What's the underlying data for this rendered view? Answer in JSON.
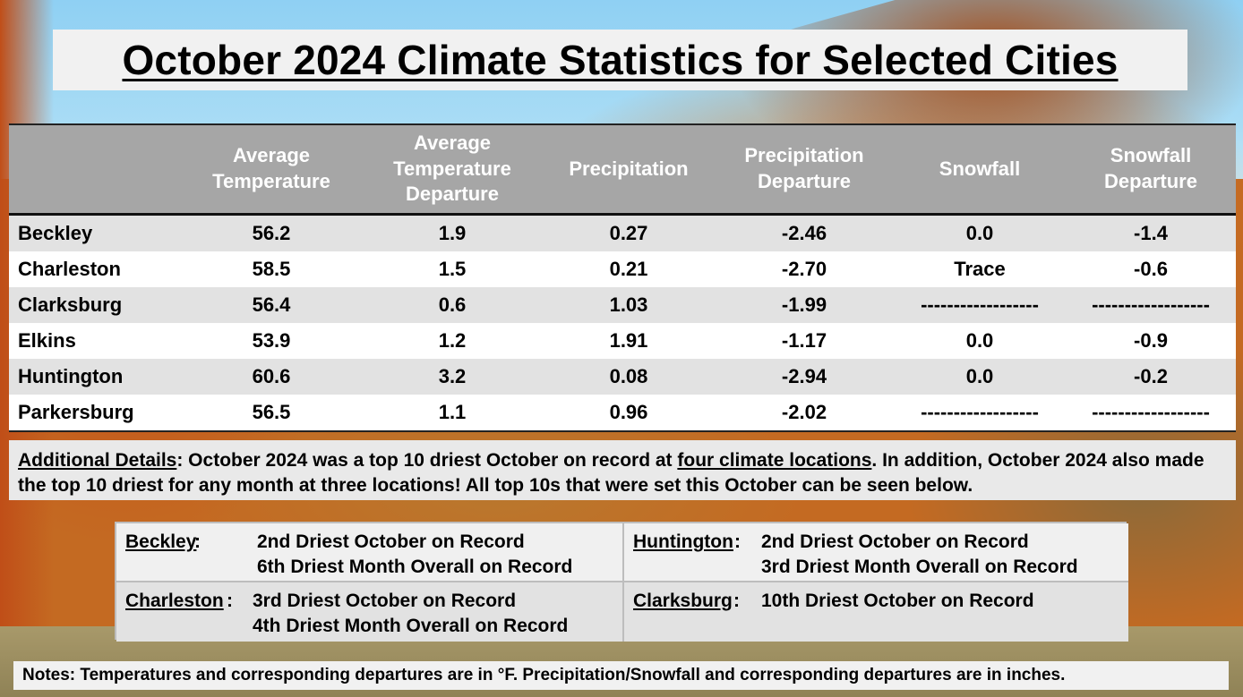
{
  "title": "October 2024 Climate Statistics for Selected Cities",
  "table": {
    "headers": [
      "",
      "Average\nTemperature",
      "Average\nTemperature\nDeparture",
      "Precipitation",
      "Precipitation\nDeparture",
      "Snowfall",
      "Snowfall\nDeparture"
    ],
    "rows": [
      {
        "city": "Beckley",
        "avg_temp": "56.2",
        "avg_temp_dep": "1.9",
        "precip": "0.27",
        "precip_dep": "-2.46",
        "snow": "0.0",
        "snow_dep": "-1.4"
      },
      {
        "city": "Charleston",
        "avg_temp": "58.5",
        "avg_temp_dep": "1.5",
        "precip": "0.21",
        "precip_dep": "-2.70",
        "snow": "Trace",
        "snow_dep": "-0.6"
      },
      {
        "city": "Clarksburg",
        "avg_temp": "56.4",
        "avg_temp_dep": "0.6",
        "precip": "1.03",
        "precip_dep": "-1.99",
        "snow": "------------------",
        "snow_dep": "------------------"
      },
      {
        "city": "Elkins",
        "avg_temp": "53.9",
        "avg_temp_dep": "1.2",
        "precip": "1.91",
        "precip_dep": "-1.17",
        "snow": "0.0",
        "snow_dep": "-0.9"
      },
      {
        "city": "Huntington",
        "avg_temp": "60.6",
        "avg_temp_dep": "3.2",
        "precip": "0.08",
        "precip_dep": "-2.94",
        "snow": "0.0",
        "snow_dep": "-0.2"
      },
      {
        "city": "Parkersburg",
        "avg_temp": "56.5",
        "avg_temp_dep": "1.1",
        "precip": "0.96",
        "precip_dep": "-2.02",
        "snow": "------------------",
        "snow_dep": "------------------"
      }
    ]
  },
  "details": {
    "label": "Additional Details",
    "text1": ": October 2024 was a top 10 driest October on record at ",
    "link": "four climate locations",
    "text2": ". In addition, October 2024 also made the top 10 driest for any month at three locations! All top 10s that were set this October can be seen below."
  },
  "records": [
    {
      "city": "Beckley",
      "lines": [
        "2nd Driest October on Record",
        "6th Driest Month Overall on Record"
      ]
    },
    {
      "city": "Huntington",
      "lines": [
        "2nd Driest October on Record",
        "3rd Driest Month Overall on Record"
      ]
    },
    {
      "city": "Charleston",
      "lines": [
        "3rd Driest October on Record",
        "4th Driest Month Overall on Record"
      ]
    },
    {
      "city": "Clarksburg",
      "lines": [
        "10th Driest October on Record"
      ]
    }
  ],
  "notes": "Notes: Temperatures and corresponding departures are in °F. Precipitation/Snowfall and corresponding departures are in inches."
}
